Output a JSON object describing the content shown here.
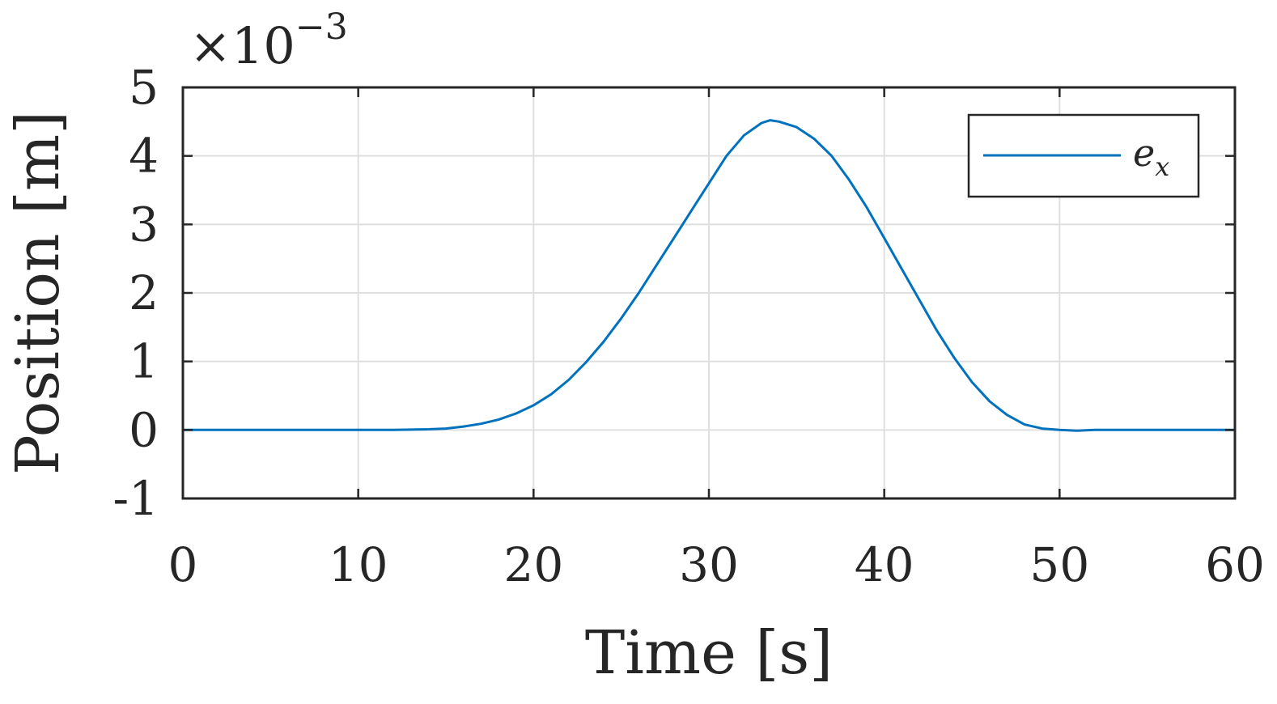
{
  "chart_data": {
    "type": "line",
    "xlabel": "Time [s]",
    "ylabel": "Position [m]",
    "y_exponent_label": "×10",
    "y_exponent_power": "−3",
    "xlim": [
      0,
      60
    ],
    "ylim": [
      -1,
      5
    ],
    "x_ticks": [
      0,
      10,
      20,
      30,
      40,
      50,
      60
    ],
    "y_ticks": [
      -1,
      0,
      1,
      2,
      3,
      4,
      5
    ],
    "x_tick_labels": [
      "0",
      "10",
      "20",
      "30",
      "40",
      "50",
      "60"
    ],
    "y_tick_labels": [
      "-1",
      "0",
      "1",
      "2",
      "3",
      "4",
      "5"
    ],
    "grid": true,
    "legend_position": "top-right",
    "series": [
      {
        "name": "e",
        "name_subscript": "x",
        "color": "#0072BD",
        "x": [
          0,
          5,
          10,
          12,
          14,
          15,
          16,
          17,
          18,
          19,
          20,
          21,
          22,
          23,
          24,
          25,
          26,
          27,
          28,
          29,
          30,
          31,
          32,
          33,
          33.5,
          34,
          35,
          36,
          37,
          38,
          39,
          40,
          41,
          42,
          43,
          44,
          45,
          46,
          47,
          48,
          49,
          50,
          51,
          52,
          53,
          55,
          60
        ],
        "y": [
          0,
          0,
          0,
          0,
          0.01,
          0.02,
          0.05,
          0.09,
          0.15,
          0.24,
          0.36,
          0.52,
          0.73,
          0.99,
          1.29,
          1.63,
          2.0,
          2.4,
          2.8,
          3.2,
          3.6,
          4.0,
          4.3,
          4.48,
          4.52,
          4.5,
          4.42,
          4.25,
          4.0,
          3.65,
          3.25,
          2.8,
          2.35,
          1.9,
          1.45,
          1.05,
          0.7,
          0.42,
          0.22,
          0.08,
          0.02,
          0.0,
          -0.01,
          0.0,
          0.0,
          0.0,
          0.0
        ]
      }
    ]
  }
}
